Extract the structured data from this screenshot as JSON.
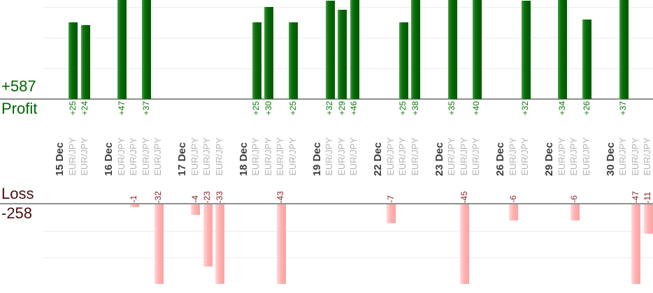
{
  "summary": {
    "profit_total": "+587",
    "profit_label": "Profit",
    "loss_label": "Loss",
    "loss_total": "-258"
  },
  "colors": {
    "profit_bar": "#006400",
    "profit_bar_highlight": "#46a046",
    "profit_text": "#006600",
    "profit_value_text": "#067806",
    "loss_bar": "#ffb3b3",
    "loss_bar_highlight": "#ffd9d9",
    "loss_text": "#4a0d0d",
    "loss_value_text": "#8b2020",
    "date_text": "#3d3d3d",
    "instrument_text": "#b3b3b3",
    "gridline": "#ececec",
    "baseline": "#8f8f8f"
  },
  "chart_data": {
    "type": "bar",
    "title": "",
    "instrument": "EUR/JPY",
    "xlabel": "",
    "ylabel": "",
    "legend": "none",
    "grid": "on",
    "profit_axis": {
      "baseline_y_value": 0,
      "gridline_step": 10,
      "visible_range": [
        0,
        32
      ],
      "total": 587
    },
    "loss_axis": {
      "baseline_y_value": 0,
      "gridline_step": 10,
      "visible_range": [
        0,
        -30
      ],
      "total": -258
    },
    "categories": [
      "15 Dec",
      "16 Dec",
      "17 Dec",
      "18 Dec",
      "19 Dec",
      "22 Dec",
      "23 Dec",
      "26 Dec",
      "29 Dec",
      "30 Dec"
    ],
    "groups": [
      {
        "date": "15 Dec",
        "trades": [
          25,
          24
        ]
      },
      {
        "date": "16 Dec",
        "trades": [
          47,
          -1,
          37,
          -32
        ]
      },
      {
        "date": "17 Dec",
        "trades": [
          -4,
          -23,
          -33
        ]
      },
      {
        "date": "18 Dec",
        "trades": [
          25,
          30,
          -43,
          25
        ]
      },
      {
        "date": "19 Dec",
        "trades": [
          32,
          29,
          46
        ]
      },
      {
        "date": "22 Dec",
        "trades": [
          -7,
          25,
          38
        ]
      },
      {
        "date": "23 Dec",
        "trades": [
          35,
          -45,
          40
        ]
      },
      {
        "date": "26 Dec",
        "trades": [
          -6,
          32
        ]
      },
      {
        "date": "29 Dec",
        "trades": [
          34,
          -6,
          26
        ]
      },
      {
        "date": "30 Dec",
        "trades": [
          37,
          -47,
          -11
        ]
      }
    ]
  }
}
